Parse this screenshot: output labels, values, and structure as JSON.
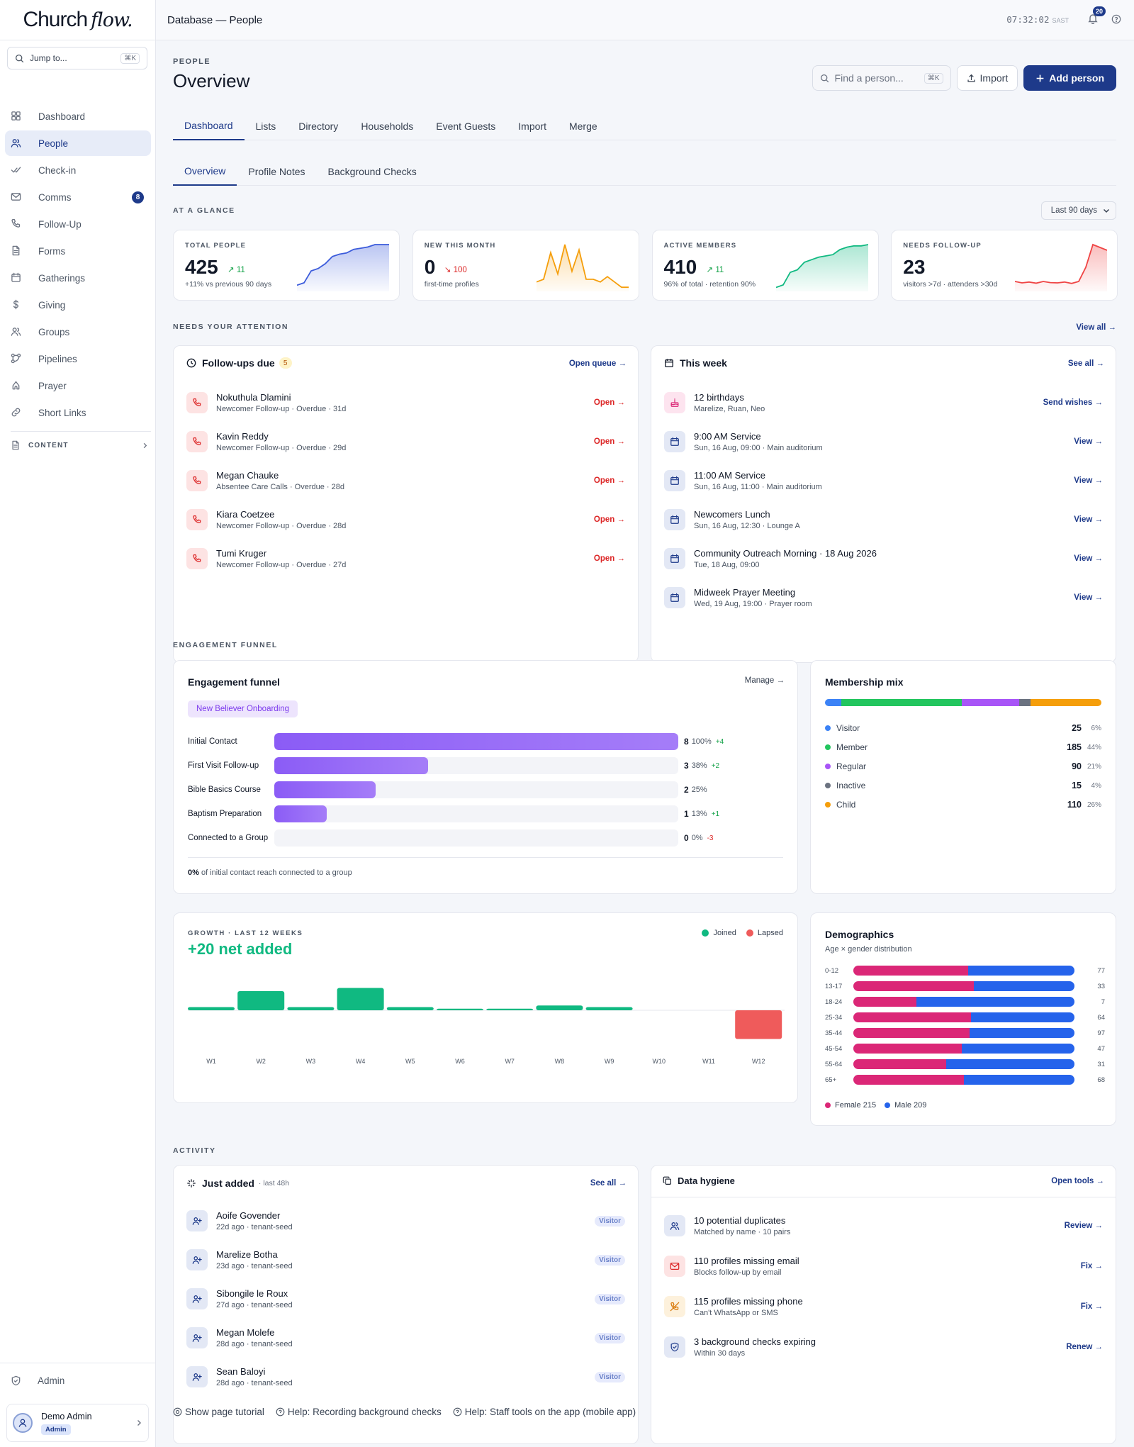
{
  "brand": {
    "name": "Church",
    "accent": "flow."
  },
  "sidebar": {
    "jump_placeholder": "Jump to...",
    "jump_kbd": "⌘K",
    "items": [
      {
        "label": "Dashboard",
        "icon": "grid-icon"
      },
      {
        "label": "People",
        "icon": "users-icon",
        "active": true
      },
      {
        "label": "Check-in",
        "icon": "check-icon"
      },
      {
        "label": "Comms",
        "icon": "mail-icon",
        "badge": "8"
      },
      {
        "label": "Follow-Up",
        "icon": "phone-icon"
      },
      {
        "label": "Forms",
        "icon": "file-icon"
      },
      {
        "label": "Gatherings",
        "icon": "calendar-icon"
      },
      {
        "label": "Giving",
        "icon": "dollar-icon"
      },
      {
        "label": "Groups",
        "icon": "group-icon"
      },
      {
        "label": "Pipelines",
        "icon": "pipeline-icon"
      },
      {
        "label": "Prayer",
        "icon": "prayer-icon"
      },
      {
        "label": "Short Links",
        "icon": "link-icon"
      }
    ],
    "content_label": "CONTENT",
    "admin_label": "Admin",
    "user": {
      "name": "Demo Admin",
      "role": "Admin"
    }
  },
  "topbar": {
    "title": "Database — People",
    "time": "07:32:02",
    "tz": "SAST",
    "notifications": "20"
  },
  "page": {
    "eyebrow": "PEOPLE",
    "title": "Overview",
    "find_placeholder": "Find a person...",
    "find_kbd": "⌘K",
    "import_label": "Import",
    "add_label": "Add person"
  },
  "tabs": [
    "Dashboard",
    "Lists",
    "Directory",
    "Households",
    "Event Guests",
    "Import",
    "Merge"
  ],
  "subtabs": [
    "Overview",
    "Profile Notes",
    "Background Checks"
  ],
  "glance": {
    "label": "AT A GLANCE",
    "range": "Last 90 days",
    "stats": [
      {
        "label": "TOTAL PEOPLE",
        "value": "425",
        "delta": "↗ 11",
        "dir": "up",
        "sub": "+11% vs previous 90 days",
        "color": "#3b5bdb",
        "spark": [
          2,
          3,
          8,
          9,
          11,
          14,
          15,
          15.5,
          17,
          17.5,
          18,
          19,
          19,
          19
        ]
      },
      {
        "label": "NEW THIS MONTH",
        "value": "0",
        "delta": "↘ 100",
        "dir": "down",
        "sub": "first-time profiles",
        "color": "#f59e0b",
        "spark": [
          3,
          4,
          14,
          6,
          17,
          7,
          15,
          4,
          4,
          3,
          5,
          3,
          1,
          1
        ]
      },
      {
        "label": "ACTIVE MEMBERS",
        "value": "410",
        "delta": "↗ 11",
        "dir": "up",
        "sub": "96% of total · retention 90%",
        "color": "#10b981",
        "spark": [
          1,
          2,
          7,
          8,
          11,
          12,
          13,
          13.5,
          14,
          16,
          17,
          17.5,
          17.5,
          18
        ]
      },
      {
        "label": "NEEDS FOLLOW-UP",
        "value": "23",
        "delta": "",
        "dir": "up",
        "sub": "visitors >7d · attenders >30d",
        "color": "#ef4444",
        "spark": [
          3,
          2.5,
          2.8,
          2.4,
          3,
          2.6,
          2.5,
          2.8,
          2.3,
          3,
          8,
          16,
          15,
          14
        ]
      }
    ]
  },
  "attention": {
    "label": "NEEDS YOUR ATTENTION",
    "view_all": "View all →",
    "followups": {
      "title": "Follow-ups due",
      "count": "5",
      "action": "Open queue →",
      "items": [
        {
          "name": "Nokuthula Dlamini",
          "sub": "Newcomer Follow-up · Overdue · 31d",
          "action": "Open →"
        },
        {
          "name": "Kavin Reddy",
          "sub": "Newcomer Follow-up · Overdue · 29d",
          "action": "Open →"
        },
        {
          "name": "Megan Chauke",
          "sub": "Absentee Care Calls · Overdue · 28d",
          "action": "Open →"
        },
        {
          "name": "Kiara Coetzee",
          "sub": "Newcomer Follow-up · Overdue · 28d",
          "action": "Open →"
        },
        {
          "name": "Tumi Kruger",
          "sub": "Newcomer Follow-up · Overdue · 27d",
          "action": "Open →"
        }
      ]
    },
    "week": {
      "title": "This week",
      "action": "See all →",
      "items": [
        {
          "name": "12 birthdays",
          "sub": "Marelize, Ruan, Neo",
          "action": "Send wishes →",
          "icon": "cake-icon",
          "tone": "pink"
        },
        {
          "name": "9:00 AM Service",
          "sub": "Sun, 16 Aug, 09:00 · Main auditorium",
          "action": "View →",
          "icon": "calendar-icon",
          "tone": "blue"
        },
        {
          "name": "11:00 AM Service",
          "sub": "Sun, 16 Aug, 11:00 · Main auditorium",
          "action": "View →",
          "icon": "calendar-icon",
          "tone": "blue"
        },
        {
          "name": "Newcomers Lunch",
          "sub": "Sun, 16 Aug, 12:30 · Lounge A",
          "action": "View →",
          "icon": "calendar-icon",
          "tone": "blue"
        },
        {
          "name": "Community Outreach Morning · 18 Aug 2026",
          "sub": "Tue, 18 Aug, 09:00",
          "action": "View →",
          "icon": "calendar-icon",
          "tone": "blue"
        },
        {
          "name": "Midweek Prayer Meeting",
          "sub": "Wed, 19 Aug, 19:00 · Prayer room",
          "action": "View →",
          "icon": "calendar-icon",
          "tone": "blue"
        }
      ]
    }
  },
  "funnel": {
    "label": "ENGAGEMENT FUNNEL",
    "title": "Engagement funnel",
    "manage": "Manage →",
    "chip": "New Believer Onboarding",
    "rows": [
      {
        "label": "Initial Contact",
        "count": "8",
        "pct": "100%",
        "delta": "+4",
        "dir": "up",
        "frac": 1.0
      },
      {
        "label": "First Visit Follow-up",
        "count": "3",
        "pct": "38%",
        "delta": "+2",
        "dir": "up",
        "frac": 0.38
      },
      {
        "label": "Bible Basics Course",
        "count": "2",
        "pct": "25%",
        "delta": "",
        "dir": "up",
        "frac": 0.25
      },
      {
        "label": "Baptism Preparation",
        "count": "1",
        "pct": "13%",
        "delta": "+1",
        "dir": "up",
        "frac": 0.13
      },
      {
        "label": "Connected to a Group",
        "count": "0",
        "pct": "0%",
        "delta": "-3",
        "dir": "down",
        "frac": 0
      }
    ],
    "note_bold": "0%",
    "note": "of initial contact reach connected to a group"
  },
  "mix": {
    "title": "Membership mix",
    "items": [
      {
        "label": "Visitor",
        "count": "25",
        "pct": "6%",
        "color": "#3b82f6",
        "frac": 6
      },
      {
        "label": "Member",
        "count": "185",
        "pct": "44%",
        "color": "#22c55e",
        "frac": 44
      },
      {
        "label": "Regular",
        "count": "90",
        "pct": "21%",
        "color": "#a855f7",
        "frac": 21
      },
      {
        "label": "Inactive",
        "count": "15",
        "pct": "4%",
        "color": "#6b7280",
        "frac": 4
      },
      {
        "label": "Child",
        "count": "110",
        "pct": "26%",
        "color": "#f59e0b",
        "frac": 26
      }
    ]
  },
  "chart_data": {
    "type": "bar",
    "title": "GROWTH · LAST 12 WEEKS",
    "headline": "+20 net added",
    "categories": [
      "W1",
      "W2",
      "W3",
      "W4",
      "W5",
      "W6",
      "W7",
      "W8",
      "W9",
      "W10",
      "W11",
      "W12"
    ],
    "series": [
      {
        "name": "Joined",
        "color": "#10b981",
        "values": [
          1,
          6,
          1,
          7,
          1,
          0.5,
          0.5,
          1.5,
          1,
          0,
          0,
          0
        ]
      },
      {
        "name": "Lapsed",
        "color": "#ef5b5b",
        "values": [
          0,
          0,
          0,
          0,
          0,
          0,
          0,
          0,
          0,
          0,
          0,
          -9
        ]
      }
    ]
  },
  "demographics": {
    "title": "Demographics",
    "subtitle": "Age × gender distribution",
    "rows": [
      {
        "age": "0-12",
        "female": 40,
        "male": 37,
        "total": "77"
      },
      {
        "age": "13-17",
        "female": 18,
        "male": 15,
        "total": "33"
      },
      {
        "age": "18-24",
        "female": 2,
        "male": 5,
        "total": "7"
      },
      {
        "age": "25-34",
        "female": 34,
        "male": 30,
        "total": "64"
      },
      {
        "age": "35-44",
        "female": 51,
        "male": 46,
        "total": "97"
      },
      {
        "age": "45-54",
        "female": 23,
        "male": 24,
        "total": "47"
      },
      {
        "age": "55-64",
        "female": 13,
        "male": 18,
        "total": "31"
      },
      {
        "age": "65+",
        "female": 34,
        "male": 34,
        "total": "68"
      }
    ],
    "legend_female": "Female 215",
    "legend_male": "Male 209",
    "female_color": "#db2777",
    "male_color": "#2563eb"
  },
  "activity": {
    "label": "ACTIVITY",
    "added": {
      "title": "Just added",
      "sub": "· last 48h",
      "action": "See all →",
      "items": [
        {
          "name": "Aoife Govender",
          "sub": "22d ago · tenant-seed",
          "tag": "Visitor"
        },
        {
          "name": "Marelize Botha",
          "sub": "23d ago · tenant-seed",
          "tag": "Visitor"
        },
        {
          "name": "Sibongile le Roux",
          "sub": "27d ago · tenant-seed",
          "tag": "Visitor"
        },
        {
          "name": "Megan Molefe",
          "sub": "28d ago · tenant-seed",
          "tag": "Visitor"
        },
        {
          "name": "Sean Baloyi",
          "sub": "28d ago · tenant-seed",
          "tag": "Visitor"
        }
      ]
    },
    "hygiene": {
      "title": "Data hygiene",
      "action": "Open tools →",
      "items": [
        {
          "name": "10 potential duplicates",
          "sub": "Matched by name · 10 pairs",
          "action": "Review →",
          "tone": "blue",
          "icon": "users-icon"
        },
        {
          "name": "110 profiles missing email",
          "sub": "Blocks follow-up by email",
          "action": "Fix →",
          "tone": "red",
          "icon": "mail-icon"
        },
        {
          "name": "115 profiles missing phone",
          "sub": "Can't WhatsApp or SMS",
          "action": "Fix →",
          "tone": "amber",
          "icon": "phone-off-icon"
        },
        {
          "name": "3 background checks expiring",
          "sub": "Within 30 days",
          "action": "Renew →",
          "tone": "blue",
          "icon": "shield-icon"
        }
      ]
    }
  },
  "footer": [
    "Show page tutorial",
    "Help: Recording background checks",
    "Help: Staff tools on the app (mobile app)"
  ]
}
